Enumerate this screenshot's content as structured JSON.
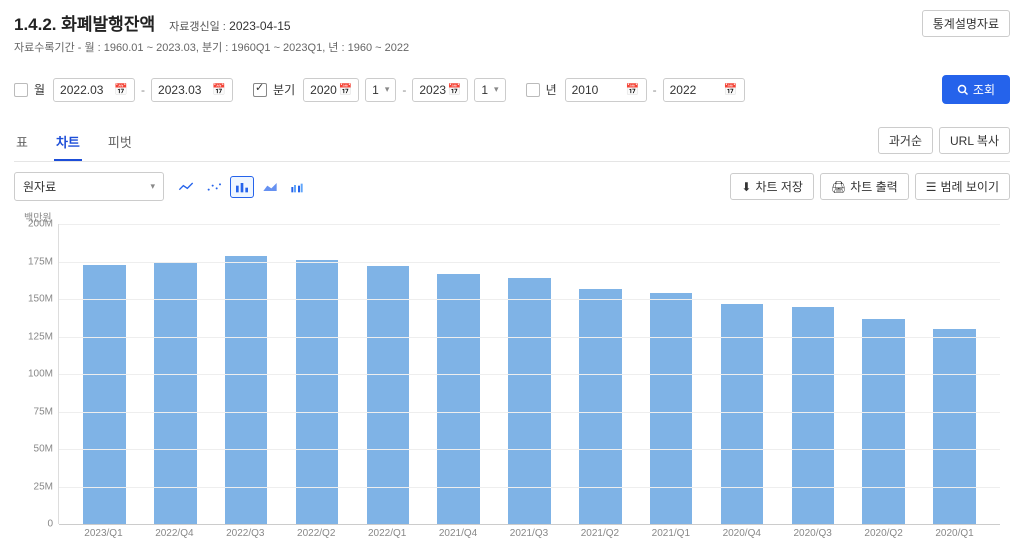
{
  "header": {
    "title": "1.4.2. 화폐발행잔액",
    "update_label": "자료갱신일 :",
    "update_date": "2023-04-15",
    "sub_info": "자료수록기간 - 월 : 1960.01 ~ 2023.03, 분기 : 1960Q1 ~ 2023Q1, 년 : 1960 ~ 2022",
    "doc_button": "통계설명자료"
  },
  "filters": {
    "month_label": "월",
    "month_from": "2022.03",
    "month_to": "2023.03",
    "quarter_label": "분기",
    "quarter_year_from": "2020",
    "quarter_q_from": "1",
    "quarter_year_to": "2023",
    "quarter_q_to": "1",
    "year_label": "년",
    "year_from": "2010",
    "year_to": "2022",
    "search_label": "조회"
  },
  "tabs": {
    "table": "표",
    "chart": "차트",
    "pivot": "피벗",
    "order_btn": "과거순",
    "url_btn": "URL 복사"
  },
  "toolbar": {
    "data_type": "원자료",
    "save_chart": "차트 저장",
    "print_chart": "차트 출력",
    "legend_btn": "범례 보이기"
  },
  "chart": {
    "type": "bar",
    "y_title": "백만원",
    "y_max": 200,
    "y_ticks": [
      "200M",
      "175M",
      "150M",
      "125M",
      "100M",
      "75M",
      "50M",
      "25M",
      "0"
    ],
    "bar_color": "#7fb3e6",
    "grid_color": "#eeeeee",
    "background": "#ffffff",
    "categories": [
      "2023/Q1",
      "2022/Q4",
      "2022/Q3",
      "2022/Q2",
      "2022/Q1",
      "2021/Q4",
      "2021/Q3",
      "2021/Q2",
      "2021/Q1",
      "2020/Q4",
      "2020/Q3",
      "2020/Q2",
      "2020/Q1"
    ],
    "values": [
      173,
      174,
      179,
      176,
      172,
      167,
      164,
      157,
      154,
      147,
      145,
      137,
      130
    ]
  }
}
